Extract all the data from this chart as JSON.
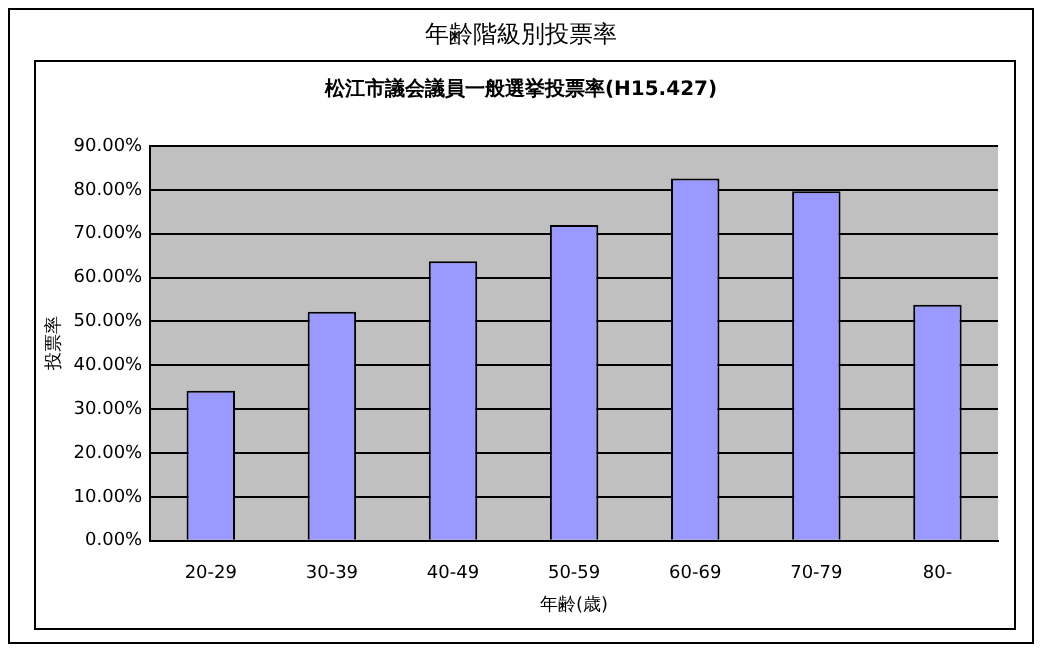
{
  "chart_data": {
    "type": "bar",
    "title": "年齢階級別投票率",
    "subtitle": "松江市議会議員一般選挙投票率(H15.427)",
    "xlabel": "年齢(歳)",
    "ylabel": "投票率",
    "categories": [
      "20-29",
      "30-39",
      "40-49",
      "50-59",
      "60-69",
      "70-79",
      "80-"
    ],
    "values": [
      34.2,
      52.2,
      63.7,
      72.0,
      82.6,
      79.7,
      53.8
    ],
    "color": "#9999ff",
    "ylim": [
      0,
      90
    ],
    "yticks": [
      {
        "value": 0,
        "label": "0.00%"
      },
      {
        "value": 10,
        "label": "10.00%"
      },
      {
        "value": 20,
        "label": "20.00%"
      },
      {
        "value": 30,
        "label": "30.00%"
      },
      {
        "value": 40,
        "label": "40.00%"
      },
      {
        "value": 50,
        "label": "50.00%"
      },
      {
        "value": 60,
        "label": "60.00%"
      },
      {
        "value": 70,
        "label": "70.00%"
      },
      {
        "value": 80,
        "label": "80.00%"
      },
      {
        "value": 90,
        "label": "90.00%"
      }
    ],
    "grid": "y",
    "legend": false
  }
}
